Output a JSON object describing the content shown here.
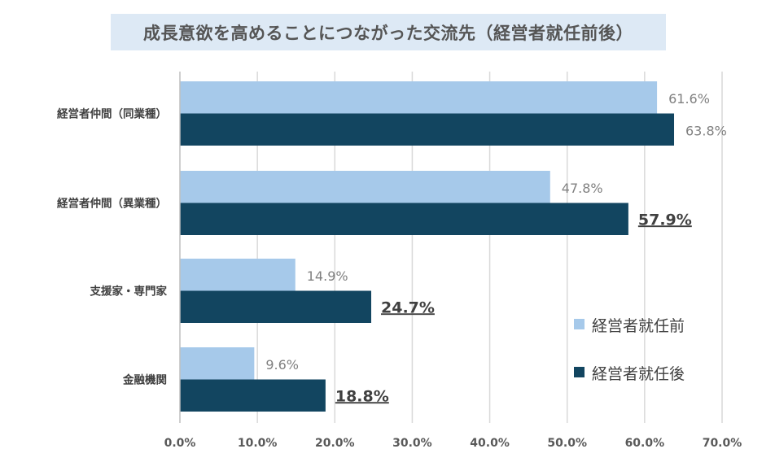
{
  "chart_data": {
    "type": "bar",
    "orientation": "horizontal",
    "title": "成長意欲を高めることにつながった交流先（経営者就任前後）",
    "categories": [
      "経営者仲間（同業種）",
      "経営者仲間（異業種）",
      "支援家・専門家",
      "金融機関"
    ],
    "series": [
      {
        "name": "経営者就任前",
        "values": [
          61.6,
          47.8,
          14.9,
          9.6
        ],
        "labels": [
          "61.6%",
          "47.8%",
          "14.9%",
          "9.6%"
        ],
        "color": "#a6c9ea"
      },
      {
        "name": "経営者就任後",
        "values": [
          63.8,
          57.9,
          24.7,
          18.8
        ],
        "labels": [
          "63.8%",
          "57.9%",
          "24.7%",
          "18.8%"
        ],
        "emphasized": [
          false,
          true,
          true,
          true
        ],
        "color": "#124560"
      }
    ],
    "xlim": [
      0,
      70
    ],
    "xticks": [
      "0.0%",
      "10.0%",
      "20.0%",
      "30.0%",
      "40.0%",
      "50.0%",
      "60.0%",
      "70.0%"
    ],
    "grid": true,
    "legend_position": "bottom-right"
  }
}
